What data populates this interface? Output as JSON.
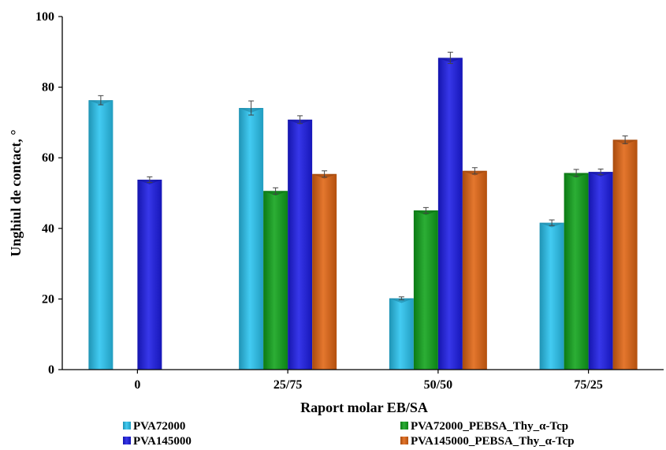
{
  "chart_data": {
    "type": "bar",
    "xlabel": "Raport molar EB/SA",
    "ylabel": "Unghiul de contact, °",
    "ylim": [
      0,
      100
    ],
    "yticks": [
      "0",
      "20",
      "40",
      "60",
      "80",
      "100"
    ],
    "categories": [
      "0",
      "25/75",
      "50/50",
      "75/25"
    ],
    "grid": false,
    "legend_position": "bottom",
    "series": [
      {
        "name": "PVA72000",
        "color": "#29c4f0",
        "values": [
          76.3,
          74.1,
          20.2,
          41.6
        ],
        "errors": [
          1.3,
          2.0,
          0.4,
          0.8
        ]
      },
      {
        "name": "PVA72000_PEBSA_Thy_α-Tcp",
        "color": "#0fa31a",
        "values": [
          null,
          50.6,
          45.1,
          55.7
        ],
        "errors": [
          null,
          0.9,
          0.8,
          1.0
        ]
      },
      {
        "name": "PVA145000",
        "color": "#1c1ce6",
        "values": [
          53.8,
          70.8,
          88.3,
          56.0
        ],
        "errors": [
          0.8,
          1.1,
          1.6,
          0.8
        ]
      },
      {
        "name": "PVA145000_PEBSA_Thy_α-Tcp",
        "color": "#e06412",
        "values": [
          null,
          55.4,
          56.3,
          65.1
        ],
        "errors": [
          null,
          0.9,
          0.9,
          1.1
        ]
      }
    ]
  }
}
